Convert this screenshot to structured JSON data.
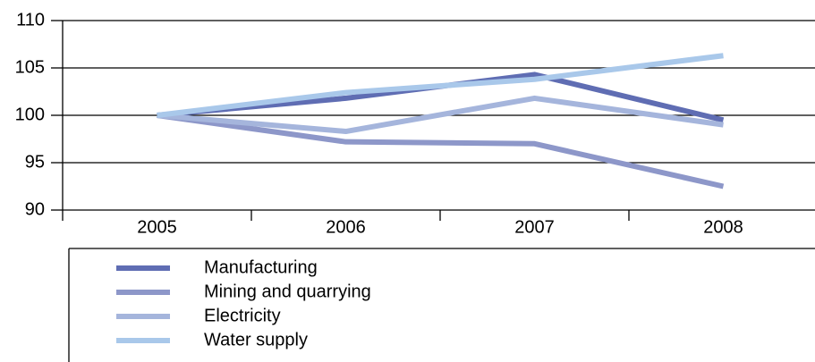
{
  "chart_data": {
    "type": "line",
    "categories": [
      "2005",
      "2006",
      "2007",
      "2008"
    ],
    "series": [
      {
        "name": "Manufacturing",
        "color": "#5f6db3",
        "values": [
          100,
          101.8,
          104.3,
          99.5
        ]
      },
      {
        "name": "Mining and quarrying",
        "color": "#8d97c9",
        "values": [
          100,
          97.2,
          97.0,
          92.5
        ]
      },
      {
        "name": "Electricity",
        "color": "#a5b5dc",
        "values": [
          100,
          98.3,
          101.8,
          99.0
        ]
      },
      {
        "name": "Water supply",
        "color": "#a9c8ea",
        "values": [
          100,
          102.4,
          103.8,
          106.3
        ]
      }
    ],
    "ylim": [
      90,
      110
    ],
    "yticks": [
      90,
      95,
      100,
      105,
      110
    ],
    "grid": true,
    "legend": "bottom"
  }
}
